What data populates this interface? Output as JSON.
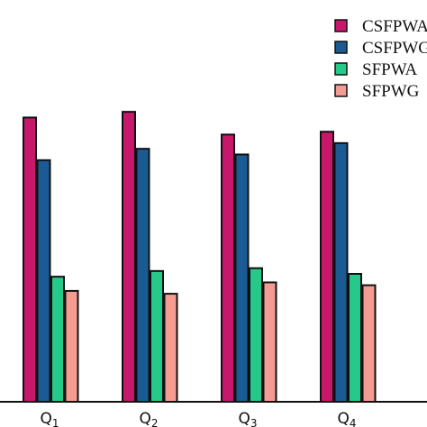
{
  "chart_data": {
    "type": "bar",
    "categories": [
      "Q1",
      "Q2",
      "Q3",
      "Q4"
    ],
    "tick_labels": [
      {
        "main": "Q",
        "sub": "1"
      },
      {
        "main": "Q",
        "sub": "2"
      },
      {
        "main": "Q",
        "sub": "3"
      },
      {
        "main": "Q",
        "sub": "4"
      }
    ],
    "series": [
      {
        "name": "CSFPWA",
        "color": "#c8186b",
        "values": [
          1.0,
          1.02,
          0.94,
          0.95
        ]
      },
      {
        "name": "CSFPWG",
        "color": "#1a5b94",
        "values": [
          0.85,
          0.89,
          0.87,
          0.91
        ]
      },
      {
        "name": "SFPWA",
        "color": "#25c98a",
        "values": [
          0.44,
          0.46,
          0.47,
          0.45
        ]
      },
      {
        "name": "SFPWG",
        "color": "#f49c92",
        "values": [
          0.39,
          0.38,
          0.42,
          0.41
        ]
      }
    ],
    "ylim": [
      0,
      1.35
    ],
    "grid": false,
    "legend": "top-right",
    "title": "",
    "xlabel": "",
    "ylabel": ""
  }
}
